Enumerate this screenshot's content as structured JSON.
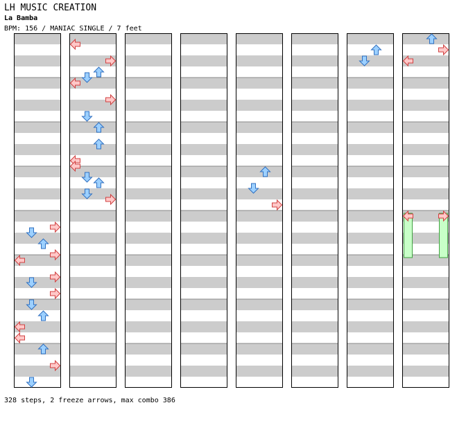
{
  "header": {
    "site_title": "LH MUSIC CREATION",
    "song_title": "La Bamba",
    "chart_info": "BPM: 156 / MANIAC SINGLE / 7 feet"
  },
  "footer": {
    "summary": "328 steps, 2 freeze arrows, max combo 386"
  },
  "colors": {
    "stripe_gray": "#cccccc",
    "border": "#000000",
    "left_right_arrow_fill": "#ffc8c8",
    "left_right_arrow_stroke": "#d04040",
    "up_down_arrow_fill": "#9cd0ff",
    "up_down_arrow_stroke": "#3070c0",
    "shock_arrow_fill": "#ffc0f0",
    "freeze_fill": "#c8ffc8",
    "freeze_stroke": "#40a040"
  },
  "chart": {
    "lane_order": [
      "left",
      "down",
      "up",
      "right"
    ],
    "column_count": 8,
    "measures_per_column": 8,
    "steps": [
      {
        "c": 1,
        "m": 0,
        "b": 0.5,
        "d": "left"
      },
      {
        "c": 1,
        "m": 0,
        "b": 2,
        "d": "right"
      },
      {
        "c": 1,
        "m": 0,
        "b": 3,
        "d": "up"
      },
      {
        "c": 1,
        "m": 0,
        "b": 3.5,
        "d": "down"
      },
      {
        "c": 1,
        "m": 1,
        "b": 0,
        "d": "left"
      },
      {
        "c": 1,
        "m": 1,
        "b": 1.5,
        "d": "right"
      },
      {
        "c": 1,
        "m": 1,
        "b": 3,
        "d": "down"
      },
      {
        "c": 1,
        "m": 2,
        "b": 0,
        "d": "up"
      },
      {
        "c": 1,
        "m": 2,
        "b": 1.5,
        "d": "up"
      },
      {
        "c": 1,
        "m": 2,
        "b": 3,
        "d": "left"
      },
      {
        "c": 1,
        "m": 2,
        "b": 3.5,
        "d": "left"
      },
      {
        "c": 1,
        "m": 3,
        "b": 0.5,
        "d": "down"
      },
      {
        "c": 1,
        "m": 3,
        "b": 1,
        "d": "up"
      },
      {
        "c": 1,
        "m": 3,
        "b": 2,
        "d": "down"
      },
      {
        "c": 1,
        "m": 3,
        "b": 2.5,
        "d": "right"
      },
      {
        "c": 0,
        "m": 4,
        "b": 1,
        "d": "right"
      },
      {
        "c": 0,
        "m": 4,
        "b": 1.5,
        "d": "down"
      },
      {
        "c": 0,
        "m": 4,
        "b": 2.5,
        "d": "up"
      },
      {
        "c": 0,
        "m": 4,
        "b": 3.5,
        "d": "right"
      },
      {
        "c": 0,
        "m": 5,
        "b": 0,
        "d": "left"
      },
      {
        "c": 0,
        "m": 5,
        "b": 1.5,
        "d": "right"
      },
      {
        "c": 0,
        "m": 5,
        "b": 2,
        "d": "down"
      },
      {
        "c": 0,
        "m": 5,
        "b": 3,
        "d": "right"
      },
      {
        "c": 0,
        "m": 6,
        "b": 0,
        "d": "down"
      },
      {
        "c": 0,
        "m": 6,
        "b": 1,
        "d": "up"
      },
      {
        "c": 0,
        "m": 6,
        "b": 2,
        "d": "left"
      },
      {
        "c": 0,
        "m": 6,
        "b": 3,
        "d": "left"
      },
      {
        "c": 0,
        "m": 7,
        "b": 0,
        "d": "up"
      },
      {
        "c": 0,
        "m": 7,
        "b": 1.5,
        "d": "right"
      },
      {
        "c": 0,
        "m": 7,
        "b": 3,
        "d": "down"
      },
      {
        "c": 4,
        "m": 3,
        "b": 0,
        "d": "up"
      },
      {
        "c": 4,
        "m": 3,
        "b": 1.5,
        "d": "down"
      },
      {
        "c": 4,
        "m": 3,
        "b": 3,
        "d": "right"
      },
      {
        "c": 6,
        "m": 0,
        "b": 1,
        "d": "up"
      },
      {
        "c": 6,
        "m": 0,
        "b": 2,
        "d": "down"
      },
      {
        "c": 7,
        "m": 0,
        "b": 0,
        "d": "up"
      },
      {
        "c": 7,
        "m": 0,
        "b": 1,
        "d": "right"
      },
      {
        "c": 7,
        "m": 0,
        "b": 2,
        "d": "left"
      },
      {
        "c": 7,
        "m": 4,
        "d": "left",
        "freeze": true,
        "len": 4
      },
      {
        "c": 7,
        "m": 4,
        "d": "right",
        "freeze": true,
        "len": 4
      }
    ]
  }
}
